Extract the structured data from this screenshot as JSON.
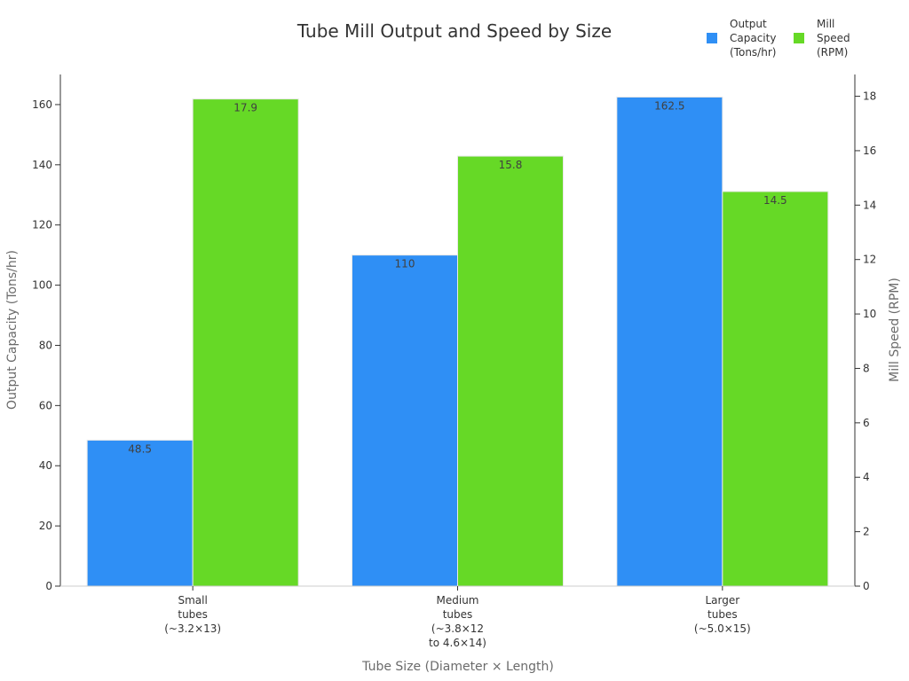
{
  "chart_data": {
    "type": "bar",
    "title": "Tube Mill Output and Speed by Size",
    "xlabel": "Tube Size (Diameter × Length)",
    "ylabel": "Output Capacity (Tons/hr)",
    "y2label": "Mill Speed (RPM)",
    "categories": [
      [
        "Small",
        "tubes",
        "(~3.2×13)"
      ],
      [
        "Medium",
        "tubes",
        "(~3.8×12",
        "to 4.6×14)"
      ],
      [
        "Larger",
        "tubes",
        "(~5.0×15)"
      ]
    ],
    "series": [
      {
        "name": [
          "Output",
          "Capacity",
          "(Tons/hr)"
        ],
        "axis": "left",
        "color": "#2f8ff5",
        "values": [
          48.5,
          110,
          162.5
        ]
      },
      {
        "name": [
          "Mill",
          "Speed",
          "(RPM)"
        ],
        "axis": "right",
        "color": "#66d926",
        "values": [
          17.9,
          15.8,
          14.5
        ]
      }
    ],
    "ylim": [
      0,
      170
    ],
    "y2lim": [
      0,
      18.8
    ],
    "yticks": [
      0,
      20,
      40,
      60,
      80,
      100,
      120,
      140,
      160
    ],
    "y2ticks": [
      0,
      2,
      4,
      6,
      8,
      10,
      12,
      14,
      16,
      18
    ],
    "grid": false,
    "legend_position": "top-right"
  }
}
